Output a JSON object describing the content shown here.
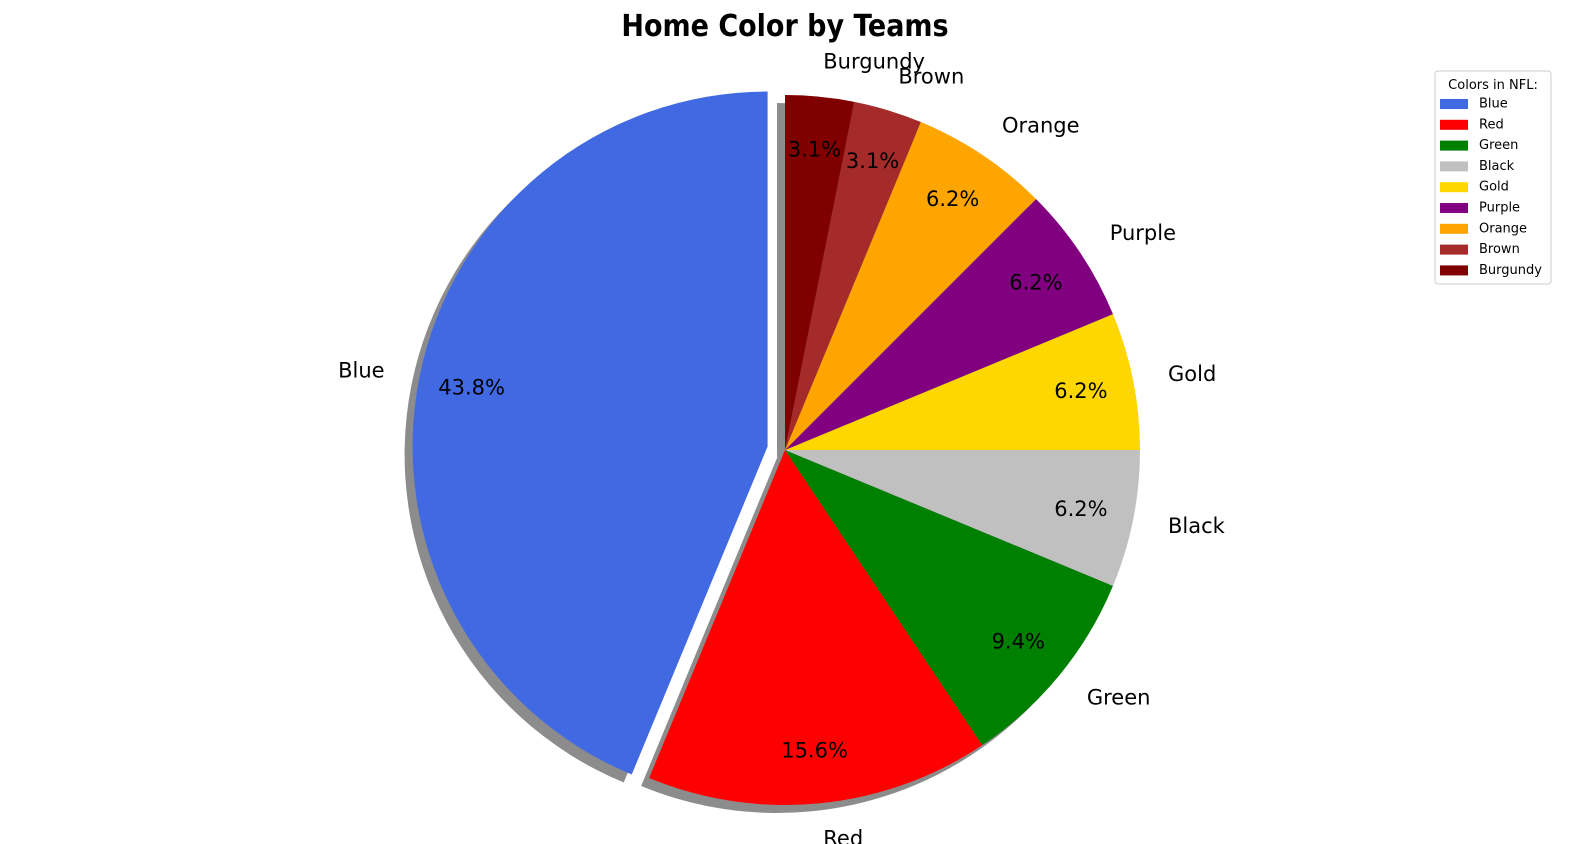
{
  "chart_data": {
    "type": "pie",
    "title": "Home Color by Teams",
    "categories": [
      "Blue",
      "Red",
      "Green",
      "Black",
      "Gold",
      "Purple",
      "Orange",
      "Brown",
      "Burgundy"
    ],
    "values": [
      14,
      5,
      3,
      2,
      2,
      2,
      2,
      1,
      1
    ],
    "percent_labels": [
      "43.8%",
      "15.6%",
      "9.4%",
      "6.2%",
      "6.2%",
      "6.2%",
      "6.2%",
      "3.1%",
      "3.1%"
    ],
    "colors": [
      "#4169e1",
      "#ff0000",
      "#008000",
      "#c0c0c0",
      "#ffd700",
      "#800080",
      "#ffa500",
      "#a52a2a",
      "#800000"
    ],
    "start_angle_deg": 90,
    "direction": "counterclockwise",
    "exploded": [
      "Blue"
    ],
    "shadow": true,
    "legend": {
      "title": "Colors in NFL:",
      "placement": "top-right",
      "entries": [
        "Blue",
        "Red",
        "Green",
        "Black",
        "Gold",
        "Purple",
        "Orange",
        "Brown",
        "Burgundy"
      ]
    }
  }
}
